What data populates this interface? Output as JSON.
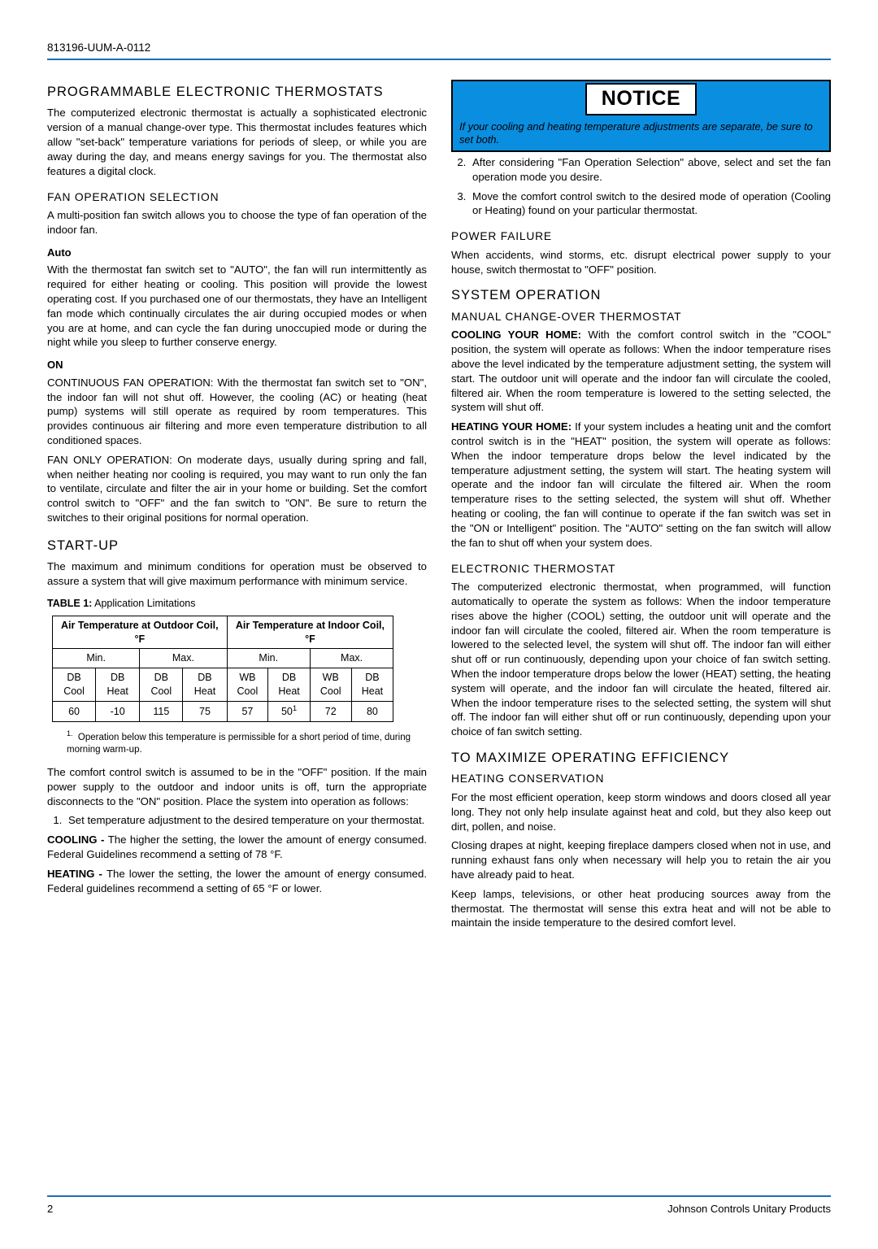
{
  "docNumber": "813196-UUM-A-0112",
  "pageNumber": "2",
  "footerRight": "Johnson Controls Unitary Products",
  "colors": {
    "rule": "#1a6fb5",
    "noticeBg": "#0a8ee0",
    "text": "#000000",
    "pageBg": "#ffffff"
  },
  "left": {
    "h1": "PROGRAMMABLE ELECTRONIC THERMOSTATS",
    "p1": "The computerized electronic thermostat is actually a sophisticated electronic version of a manual change-over type. This thermostat includes features which allow \"set-back\" temperature variations for periods of sleep, or while you are away during the day, and means energy savings for you. The thermostat also features a digital clock.",
    "h2_fan": "FAN OPERATION SELECTION",
    "p_fan": "A multi-position fan switch allows you to choose the type of fan operation of the indoor fan.",
    "h3_auto": "Auto",
    "p_auto": "With the thermostat fan switch set to \"AUTO\", the fan will run intermittently as required for either heating or cooling. This position will provide the lowest operating cost. If you purchased one of our thermostats, they have an Intelligent fan mode which continually circulates the air during occupied modes or when you are at home, and can cycle the fan during unoccupied mode or during the night while you sleep to further conserve energy.",
    "h3_on": "ON",
    "p_on1": "CONTINUOUS FAN OPERATION: With the thermostat fan switch set to \"ON\", the indoor fan will not shut off. However, the cooling (AC) or heating (heat pump) systems will still operate as required by room temperatures. This provides continuous air filtering and more even temperature distribution to all conditioned spaces.",
    "p_on2": "FAN ONLY OPERATION: On moderate days, usually during spring and fall, when neither heating nor cooling is required, you may want to run only the fan to ventilate, circulate and filter the air in your home or building. Set the comfort control switch to \"OFF\" and the fan switch to \"ON\". Be sure to return the switches to their original positions for normal operation.",
    "h1_startup": "START-UP",
    "p_startup": "The maximum and minimum conditions for operation must be observed to assure a system that will give maximum performance with minimum service.",
    "table": {
      "captionBold": "TABLE 1:",
      "captionRest": " Application Limitations",
      "groupHeaders": [
        "Air Temperature at Outdoor Coil, °F",
        "Air Temperature at Indoor Coil, °F"
      ],
      "subHeaders": [
        "Min.",
        "Max.",
        "Min.",
        "Max."
      ],
      "colHeaders": [
        "DB Cool",
        "DB Heat",
        "DB Cool",
        "DB Heat",
        "WB Cool",
        "DB Heat",
        "WB Cool",
        "DB Heat"
      ],
      "row": [
        "60",
        "-10",
        "115",
        "75",
        "57",
        "50",
        "72",
        "80"
      ],
      "footnoteMark": "1",
      "footnote": "Operation below this temperature is permissible for a short period of time, during morning warm-up."
    },
    "p_comfort": "The comfort control switch is assumed to be in the \"OFF\" position. If the main power supply to the outdoor and indoor units is off, turn the appropriate disconnects to the \"ON\" position. Place the system into operation as follows:",
    "step1": "Set temperature adjustment to the desired temperature on your thermostat.",
    "cooling_label": "COOLING - ",
    "cooling_text": "The higher the setting, the lower the amount of energy consumed. Federal Guidelines recommend a setting of 78 °F.",
    "heating_label": "HEATING - ",
    "heating_text": "The lower the setting, the lower the amount of energy consumed. Federal guidelines recommend a setting of 65 °F or lower."
  },
  "right": {
    "notice_title": "NOTICE",
    "notice_text": "If your cooling and heating temperature adjustments are separate, be sure to set both.",
    "step2": "After considering \"Fan Operation Selection\" above, select and set the fan operation mode you desire.",
    "step3": "Move the comfort control switch to the desired mode of operation (Cooling or Heating) found on your particular thermostat.",
    "h2_power": "POWER FAILURE",
    "p_power": "When accidents, wind storms, etc. disrupt electrical power supply to your house, switch thermostat to \"OFF\" position.",
    "h1_sysop": "SYSTEM OPERATION",
    "h2_manual": "MANUAL CHANGE-OVER THERMOSTAT",
    "cool_label": "COOLING YOUR HOME:",
    "cool_text": " With the comfort control switch in the \"COOL\" position, the system will operate as follows: When the indoor temperature rises above the level indicated by the temperature adjustment setting, the system will start. The outdoor unit will operate and the indoor fan will circulate the cooled, filtered air. When the room temperature is lowered to the setting selected, the system will shut off.",
    "heat_label": "HEATING YOUR HOME:",
    "heat_text": " If your system includes a heating unit and the comfort control switch is in the \"HEAT\" position, the system will operate as follows: When the indoor temperature drops below the level indicated by the temperature adjustment setting, the system will start. The heating system will operate and the indoor fan will circulate the filtered air. When the room temperature rises to the setting selected, the system will shut off. Whether heating or cooling, the fan will continue to operate if the fan switch was set in the \"ON or Intelligent\" position. The \"AUTO\" setting on the fan switch will allow the fan to shut off when your system does.",
    "h2_elec": "ELECTRONIC THERMOSTAT",
    "p_elec": "The computerized electronic thermostat, when programmed, will function automatically to operate the system as follows: When the indoor temperature rises above the higher (COOL) setting, the outdoor unit will operate and the indoor fan will circulate the cooled, filtered air. When the room temperature is lowered to the selected level, the system will shut off. The indoor fan will either shut off or run continuously, depending upon your choice of fan switch setting. When the indoor temperature drops below the lower (HEAT) setting, the heating system will operate, and the indoor fan will circulate the heated, filtered air. When the indoor temperature rises to the selected setting, the system will shut off. The indoor fan will either shut off or run continuously, depending upon your choice of fan switch setting.",
    "h1_max": "TO MAXIMIZE OPERATING EFFICIENCY",
    "h2_heatcons": "HEATING CONSERVATION",
    "p_hc1": "For the most efficient operation, keep storm windows and doors closed all year long. They not only help insulate against heat and cold, but they also keep out dirt, pollen, and noise.",
    "p_hc2": "Closing drapes at night, keeping fireplace dampers closed when not in use, and running exhaust fans only when necessary will help you to retain the air you have already paid to heat.",
    "p_hc3": "Keep lamps, televisions, or other heat producing sources away from the thermostat. The thermostat will sense this extra heat and will not be able to maintain the inside temperature to the desired comfort level."
  }
}
